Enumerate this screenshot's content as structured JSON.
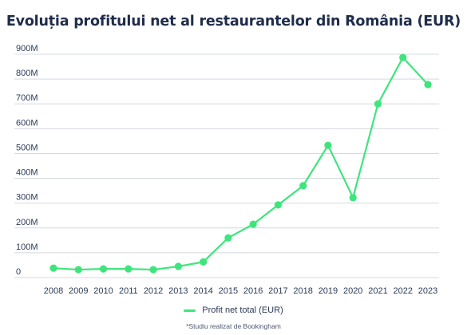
{
  "title": "Evoluția profitului net al restaurantelor din România (EUR)",
  "footnote": "*Studiu realizat de Bookingham",
  "colors": {
    "line": "#3ee57c",
    "grid": "#d4d8e0",
    "text": "#2c3a56",
    "title": "#1f2d4a"
  },
  "chart_data": {
    "type": "line",
    "title": "Evoluția profitului net al restaurantelor din România (EUR)",
    "xlabel": "",
    "ylabel": "",
    "x": [
      "2008",
      "2009",
      "2010",
      "2011",
      "2012",
      "2013",
      "2014",
      "2015",
      "2016",
      "2017",
      "2018",
      "2019",
      "2020",
      "2021",
      "2022",
      "2023"
    ],
    "series": [
      {
        "name": "Profit net total (EUR)",
        "values": [
          38,
          32,
          35,
          35,
          32,
          45,
          63,
          160,
          215,
          293,
          370,
          533,
          322,
          700,
          887,
          778
        ]
      }
    ],
    "yunit": "M",
    "ylim": [
      0,
      900
    ],
    "yticks": [
      0,
      100,
      200,
      300,
      400,
      500,
      600,
      700,
      800,
      900
    ],
    "ytick_labels": [
      "0",
      "100M",
      "200M",
      "300M",
      "400M",
      "500M",
      "600M",
      "700M",
      "800M",
      "900M"
    ],
    "grid": true,
    "legend": "bottom-center"
  }
}
